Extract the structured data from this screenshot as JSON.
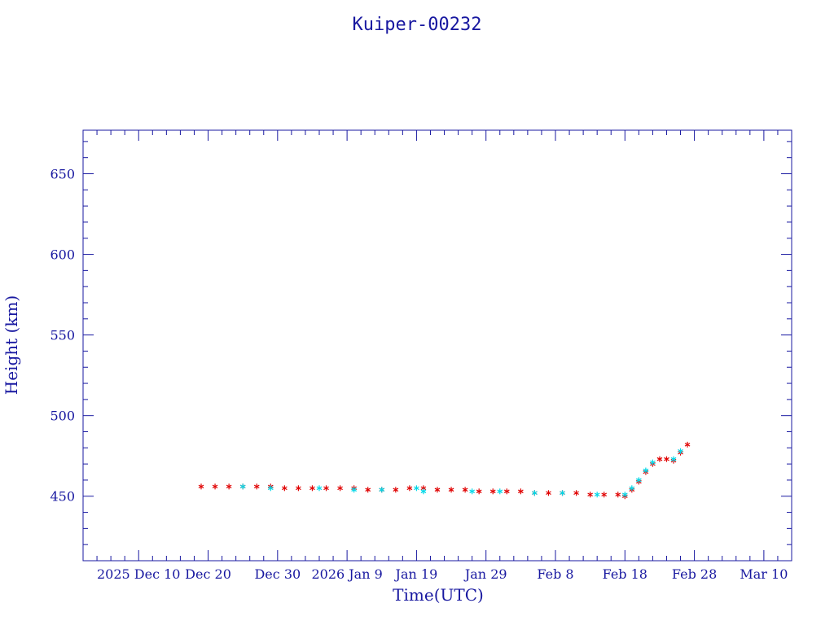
{
  "chart_data": {
    "type": "scatter",
    "title": "Kuiper-00232",
    "xlabel": "Time(UTC)",
    "ylabel": "Height (km)",
    "x_tick_labels": [
      "2025 Dec 10",
      "Dec 20",
      "Dec 30",
      "2026 Jan  9",
      "Jan 19",
      "Jan 29",
      "Feb  8",
      "Feb 18",
      "Feb 28",
      "Mar 10"
    ],
    "x_tick_dates": [
      "2025-12-10",
      "2025-12-20",
      "2025-12-30",
      "2026-01-09",
      "2026-01-19",
      "2026-01-29",
      "2026-02-08",
      "2026-02-18",
      "2026-02-28",
      "2026-03-10"
    ],
    "xlim": [
      "2025-12-02",
      "2026-03-14"
    ],
    "y_ticks": [
      450,
      500,
      550,
      600,
      650
    ],
    "y_tick_labels": [
      "450",
      "500",
      "550",
      "600",
      "650"
    ],
    "ylim": [
      410,
      677
    ],
    "grid": false,
    "series": [
      {
        "color": "#e00000",
        "marker": "asterisk",
        "x": [
          "2025-12-19",
          "2025-12-21",
          "2025-12-23",
          "2025-12-25",
          "2025-12-27",
          "2025-12-29",
          "2025-12-31",
          "2026-01-02",
          "2026-01-04",
          "2026-01-06",
          "2026-01-08",
          "2026-01-10",
          "2026-01-12",
          "2026-01-14",
          "2026-01-16",
          "2026-01-18",
          "2026-01-20",
          "2026-01-22",
          "2026-01-24",
          "2026-01-26",
          "2026-01-28",
          "2026-01-30",
          "2026-02-01",
          "2026-02-03",
          "2026-02-05",
          "2026-02-07",
          "2026-02-09",
          "2026-02-11",
          "2026-02-13",
          "2026-02-15",
          "2026-02-17",
          "2026-02-18",
          "2026-02-19",
          "2026-02-20",
          "2026-02-21",
          "2026-02-22",
          "2026-02-23",
          "2026-02-24",
          "2026-02-25",
          "2026-02-26",
          "2026-02-27"
        ],
        "y": [
          456,
          456,
          456,
          456,
          456,
          456,
          455,
          455,
          455,
          455,
          455,
          455,
          454,
          454,
          454,
          455,
          455,
          454,
          454,
          454,
          453,
          453,
          453,
          453,
          452,
          452,
          452,
          452,
          451,
          451,
          451,
          450,
          454,
          459,
          465,
          470,
          473,
          473,
          472,
          477,
          482
        ]
      },
      {
        "color": "#00d8e8",
        "marker": "asterisk",
        "x": [
          "2025-12-25",
          "2025-12-29",
          "2026-01-05",
          "2026-01-10",
          "2026-01-14",
          "2026-01-19",
          "2026-01-20",
          "2026-01-27",
          "2026-01-31",
          "2026-02-05",
          "2026-02-09",
          "2026-02-14",
          "2026-02-18",
          "2026-02-19",
          "2026-02-20",
          "2026-02-21",
          "2026-02-22",
          "2026-02-25",
          "2026-02-26"
        ],
        "y": [
          456,
          455,
          455,
          454,
          454,
          455,
          453,
          453,
          453,
          452,
          452,
          451,
          451,
          455,
          460,
          466,
          471,
          473,
          478
        ]
      }
    ]
  }
}
